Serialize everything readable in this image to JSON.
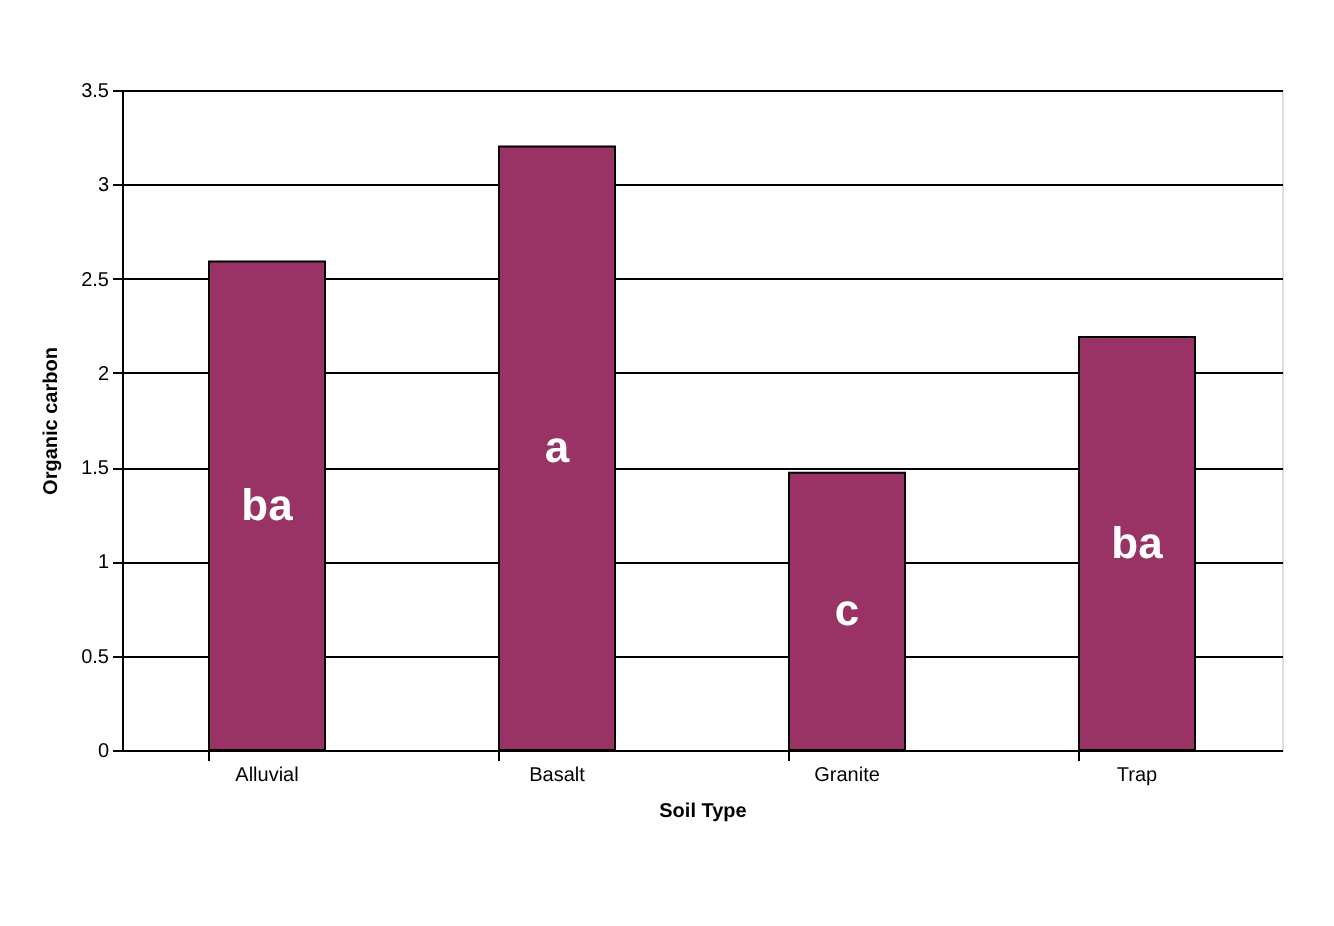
{
  "chart_data": {
    "type": "bar",
    "xlabel": "Soil Type",
    "ylabel": "Organic carbon",
    "categories": [
      "Alluvial",
      "Basalt",
      "Granite",
      "Trap"
    ],
    "values": [
      2.59,
      3.2,
      1.47,
      2.19
    ],
    "color": "#993366",
    "ylim": [
      0,
      3.5
    ],
    "yticks": [
      0,
      0.5,
      1,
      1.5,
      2,
      2.5,
      3,
      3.5
    ],
    "grid": "y",
    "annotations": [
      "ba",
      "a",
      "c",
      "ba"
    ]
  }
}
